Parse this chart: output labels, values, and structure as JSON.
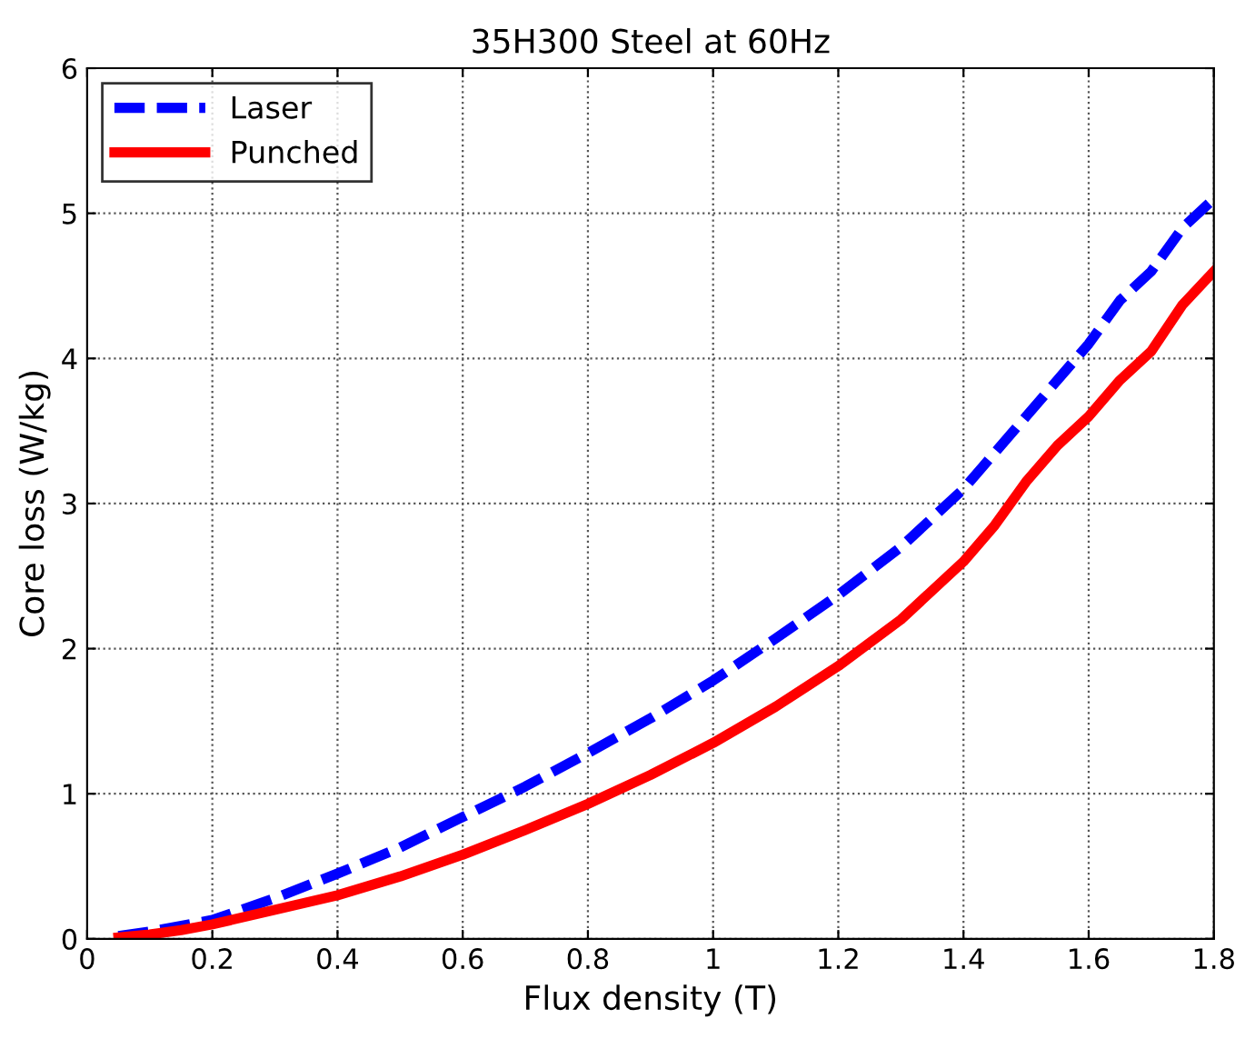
{
  "chart_data": {
    "type": "line",
    "title": "35H300 Steel at 60Hz",
    "xlabel": "Flux density (T)",
    "ylabel": "Core loss (W/kg)",
    "xlim": [
      0,
      1.8
    ],
    "xticks": [
      0,
      0.2,
      0.4,
      0.6,
      0.8,
      1,
      1.2,
      1.4,
      1.6,
      1.8
    ],
    "ylim": [
      0,
      6
    ],
    "yticks": [
      0,
      1,
      2,
      3,
      4,
      5,
      6
    ],
    "grid": true,
    "legend": "top left",
    "marker": "none",
    "series": [
      {
        "name": "Laser",
        "color": "#0000ff",
        "line_style": "dashed",
        "x": [
          0.05,
          0.1,
          0.2,
          0.3,
          0.4,
          0.5,
          0.6,
          0.7,
          0.8,
          0.9,
          1.0,
          1.1,
          1.2,
          1.3,
          1.4,
          1.5,
          1.6,
          1.65,
          1.7,
          1.75,
          1.8
        ],
        "values": [
          0.02,
          0.05,
          0.13,
          0.28,
          0.45,
          0.63,
          0.84,
          1.05,
          1.28,
          1.52,
          1.78,
          2.07,
          2.37,
          2.7,
          3.1,
          3.6,
          4.1,
          4.4,
          4.6,
          4.9,
          5.1
        ]
      },
      {
        "name": "Punched",
        "color": "#ff0000",
        "line_style": "solid",
        "x": [
          0.05,
          0.1,
          0.15,
          0.2,
          0.3,
          0.4,
          0.5,
          0.6,
          0.7,
          0.8,
          0.9,
          1.0,
          1.1,
          1.2,
          1.3,
          1.4,
          1.45,
          1.5,
          1.55,
          1.6,
          1.65,
          1.7,
          1.75,
          1.8
        ],
        "values": [
          0.01,
          0.03,
          0.06,
          0.1,
          0.2,
          0.3,
          0.43,
          0.58,
          0.75,
          0.93,
          1.13,
          1.35,
          1.6,
          1.88,
          2.2,
          2.6,
          2.85,
          3.15,
          3.4,
          3.6,
          3.85,
          4.05,
          4.37,
          4.6
        ]
      }
    ]
  }
}
